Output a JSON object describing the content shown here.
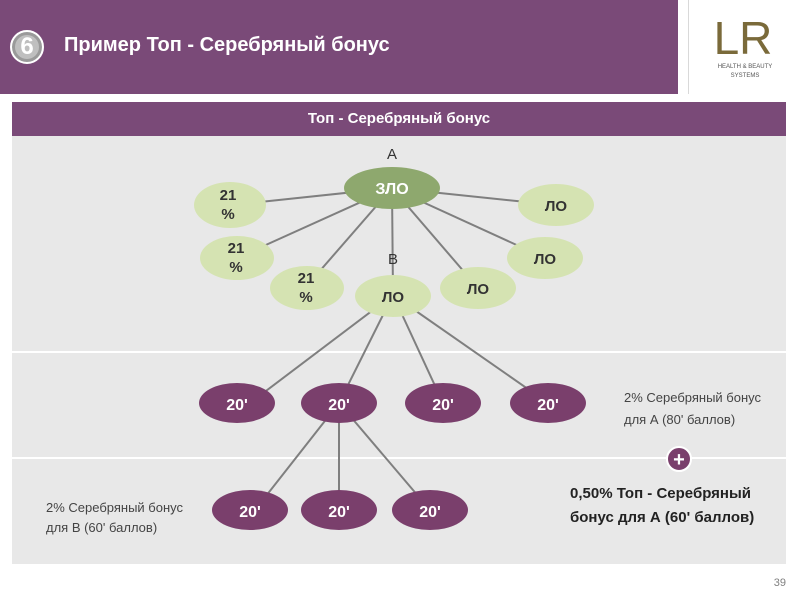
{
  "slide": {
    "number": "6",
    "title": "Пример Топ - Серебряный бонус",
    "page_number": "39"
  },
  "logo": {
    "mark": "LR",
    "line1": "HEALTH & BEAUTY",
    "line2": "SYSTEMS"
  },
  "table": {
    "header": "Топ - Серебряный бонус"
  },
  "diagram": {
    "label_a": "A",
    "label_b": "B",
    "root": "ЗЛО",
    "pct_nodes": [
      "21\n%",
      "21\n%",
      "21\n%"
    ],
    "lo_nodes": [
      "ЛО",
      "ЛО",
      "ЛО"
    ],
    "b_node": "ЛО",
    "level2": [
      "20'",
      "20'",
      "20'",
      "20'"
    ],
    "level3": [
      "20'",
      "20'",
      "20'"
    ],
    "plus": "+",
    "note_a": [
      "2% Серебряный бонус",
      "для А (80' баллов)"
    ],
    "note_b": [
      "2% Серебряный бонус",
      "для В (60' баллов)"
    ],
    "result": [
      "0,50% Топ - Серебряный",
      "бонус для А (60' баллов)"
    ],
    "colors": {
      "green_light": "#d5e3b2",
      "green_dark": "#8ea86e",
      "purple": "#7a3f6c",
      "line": "#7f7f7f"
    }
  }
}
